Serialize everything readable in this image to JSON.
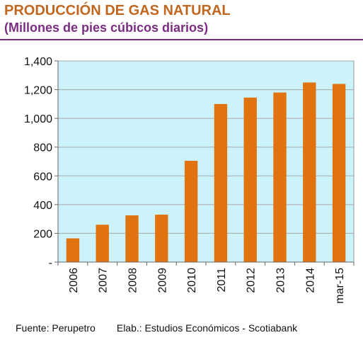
{
  "header": {
    "title": "PRODUCCIÓN DE GAS NATURAL",
    "subtitle": "(Millones de pies cúbicos diarios)"
  },
  "footer": {
    "source": "Fuente: Perupetro",
    "elab": "Elab.: Estudios Económicos - Scotiabank"
  },
  "colors": {
    "bar": "#e0720f",
    "plot_background": "#ccf2fb",
    "title": "#c0661f",
    "subtitle": "#7b2d82"
  },
  "chart_data": {
    "type": "bar",
    "title": "PRODUCCIÓN DE GAS NATURAL",
    "subtitle": "(Millones de pies cúbicos diarios)",
    "categories": [
      "2006",
      "2007",
      "2008",
      "2009",
      "2010",
      "2011",
      "2012",
      "2013",
      "2014",
      "mar-15"
    ],
    "values": [
      165,
      260,
      325,
      330,
      705,
      1100,
      1145,
      1180,
      1250,
      1240
    ],
    "ylim": [
      0,
      1400
    ],
    "yticks": [
      0,
      200,
      400,
      600,
      800,
      1000,
      1200,
      1400
    ],
    "ytick_labels": [
      "-",
      "200",
      "400",
      "600",
      "800",
      "1,000",
      "1,200",
      "1,400"
    ],
    "xlabel": "",
    "ylabel": "",
    "grid": true,
    "legend": "none"
  }
}
